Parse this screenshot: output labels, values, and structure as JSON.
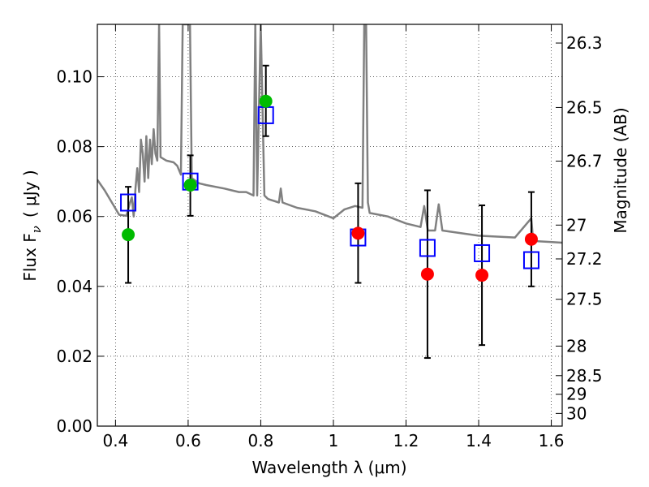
{
  "chart_data": {
    "type": "scatter",
    "title": "",
    "xlabel": "Wavelength  λ (μm)",
    "ylabel": "Flux  F",
    "ylabel_subscript": "ν",
    "ylabel_unit": "( μJy )",
    "ylabel_right": "Magnitude (AB)",
    "xlim": [
      0.35,
      1.63
    ],
    "ylim": [
      0.0,
      0.115
    ],
    "grid": true,
    "x_ticks": [
      {
        "value": 0.4,
        "label": "0.4"
      },
      {
        "value": 0.6,
        "label": "0.6"
      },
      {
        "value": 0.8,
        "label": "0.8"
      },
      {
        "value": 1.0,
        "label": "1"
      },
      {
        "value": 1.2,
        "label": "1.2"
      },
      {
        "value": 1.4,
        "label": "1.4"
      },
      {
        "value": 1.6,
        "label": "1.6"
      }
    ],
    "y_ticks": [
      {
        "value": 0.0,
        "label": "0.00"
      },
      {
        "value": 0.02,
        "label": "0.02"
      },
      {
        "value": 0.04,
        "label": "0.04"
      },
      {
        "value": 0.06,
        "label": "0.06"
      },
      {
        "value": 0.08,
        "label": "0.08"
      },
      {
        "value": 0.1,
        "label": "0.10"
      }
    ],
    "mag_ticks": [
      {
        "value": 26.3,
        "label": "26.3"
      },
      {
        "value": 26.5,
        "label": "26.5"
      },
      {
        "value": 26.7,
        "label": "26.7"
      },
      {
        "value": 27.0,
        "label": "27"
      },
      {
        "value": 27.2,
        "label": "27.2"
      },
      {
        "value": 27.5,
        "label": "27.5"
      },
      {
        "value": 28.0,
        "label": "28"
      },
      {
        "value": 28.5,
        "label": "28.5"
      },
      {
        "value": 29.0,
        "label": "29"
      },
      {
        "value": 30.0,
        "label": "30"
      }
    ],
    "mag_zero_point_ujy": 23.9,
    "model_spectrum": {
      "color": "#808080",
      "points": [
        [
          0.35,
          0.0705
        ],
        [
          0.37,
          0.0675
        ],
        [
          0.39,
          0.064
        ],
        [
          0.41,
          0.0605
        ],
        [
          0.43,
          0.0602
        ],
        [
          0.44,
          0.064
        ],
        [
          0.445,
          0.0655
        ],
        [
          0.45,
          0.06
        ],
        [
          0.455,
          0.068
        ],
        [
          0.46,
          0.0738
        ],
        [
          0.465,
          0.067
        ],
        [
          0.47,
          0.082
        ],
        [
          0.475,
          0.078
        ],
        [
          0.48,
          0.07
        ],
        [
          0.485,
          0.083
        ],
        [
          0.49,
          0.071
        ],
        [
          0.495,
          0.082
        ],
        [
          0.5,
          0.075
        ],
        [
          0.505,
          0.085
        ],
        [
          0.51,
          0.078
        ],
        [
          0.515,
          0.076
        ],
        [
          0.52,
          0.115
        ],
        [
          0.524,
          0.077
        ],
        [
          0.54,
          0.076
        ],
        [
          0.56,
          0.0755
        ],
        [
          0.57,
          0.0745
        ],
        [
          0.58,
          0.072
        ],
        [
          0.585,
          0.115
        ],
        [
          0.59,
          0.115
        ],
        [
          0.595,
          0.115
        ],
        [
          0.6,
          0.115
        ],
        [
          0.605,
          0.115
        ],
        [
          0.61,
          0.071
        ],
        [
          0.63,
          0.0695
        ],
        [
          0.65,
          0.069
        ],
        [
          0.7,
          0.068
        ],
        [
          0.72,
          0.0675
        ],
        [
          0.74,
          0.067
        ],
        [
          0.76,
          0.067
        ],
        [
          0.78,
          0.066
        ],
        [
          0.785,
          0.115
        ],
        [
          0.79,
          0.066
        ],
        [
          0.8,
          0.115
        ],
        [
          0.81,
          0.066
        ],
        [
          0.82,
          0.065
        ],
        [
          0.85,
          0.064
        ],
        [
          0.855,
          0.068
        ],
        [
          0.86,
          0.064
        ],
        [
          0.9,
          0.0625
        ],
        [
          0.95,
          0.0615
        ],
        [
          1.0,
          0.0595
        ],
        [
          1.03,
          0.062
        ],
        [
          1.06,
          0.063
        ],
        [
          1.08,
          0.0625
        ],
        [
          1.085,
          0.115
        ],
        [
          1.09,
          0.115
        ],
        [
          1.095,
          0.064
        ],
        [
          1.1,
          0.061
        ],
        [
          1.15,
          0.06
        ],
        [
          1.2,
          0.058
        ],
        [
          1.24,
          0.057
        ],
        [
          1.25,
          0.063
        ],
        [
          1.26,
          0.056
        ],
        [
          1.28,
          0.056
        ],
        [
          1.29,
          0.0635
        ],
        [
          1.3,
          0.056
        ],
        [
          1.4,
          0.0545
        ],
        [
          1.5,
          0.054
        ],
        [
          1.545,
          0.0595
        ],
        [
          1.55,
          0.053
        ],
        [
          1.63,
          0.0525
        ]
      ]
    },
    "series": [
      {
        "marker": "open-square",
        "color": "#0000ff",
        "points": [
          {
            "x": 0.435,
            "y": 0.064
          },
          {
            "x": 0.606,
            "y": 0.07
          },
          {
            "x": 0.814,
            "y": 0.089
          },
          {
            "x": 1.068,
            "y": 0.054
          },
          {
            "x": 1.259,
            "y": 0.051
          },
          {
            "x": 1.409,
            "y": 0.0495
          },
          {
            "x": 1.545,
            "y": 0.0475
          }
        ]
      },
      {
        "marker": "filled-circle",
        "color": "#00bb00",
        "points": [
          {
            "x": 0.435,
            "y": 0.0548,
            "yerr_low": 0.041,
            "yerr_high": 0.0685
          },
          {
            "x": 0.606,
            "y": 0.069,
            "yerr_low": 0.0602,
            "yerr_high": 0.0775
          },
          {
            "x": 0.814,
            "y": 0.093,
            "yerr_low": 0.083,
            "yerr_high": 0.1032
          }
        ]
      },
      {
        "marker": "filled-circle",
        "color": "#ff0000",
        "points": [
          {
            "x": 1.068,
            "y": 0.0552,
            "yerr_low": 0.041,
            "yerr_high": 0.0695
          },
          {
            "x": 1.259,
            "y": 0.0435,
            "yerr_low": 0.0195,
            "yerr_high": 0.0675
          },
          {
            "x": 1.409,
            "y": 0.0432,
            "yerr_low": 0.0232,
            "yerr_high": 0.0632
          },
          {
            "x": 1.545,
            "y": 0.0535,
            "yerr_low": 0.04,
            "yerr_high": 0.067
          }
        ]
      }
    ]
  }
}
